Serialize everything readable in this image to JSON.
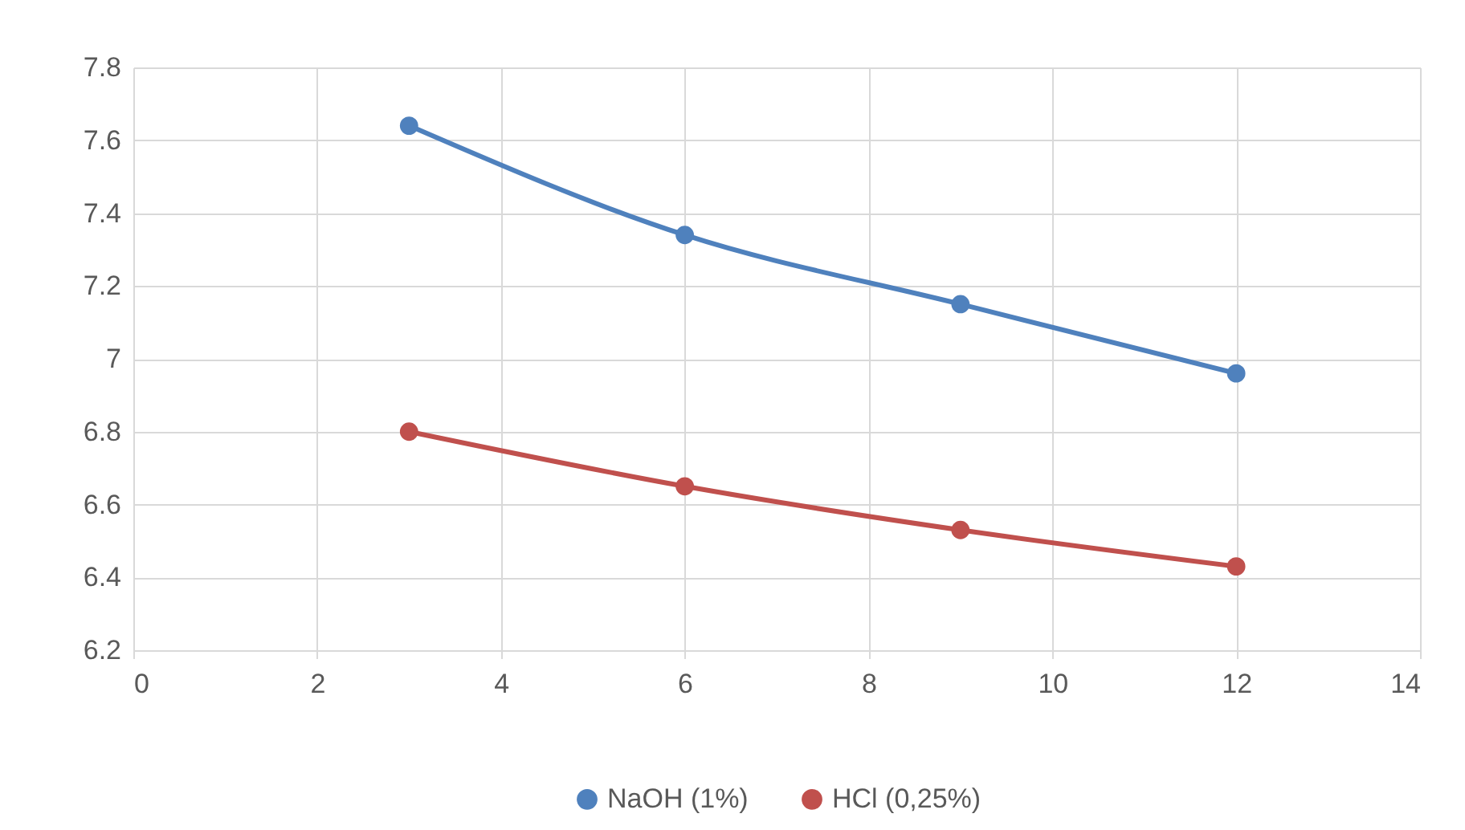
{
  "chart_data": {
    "type": "line",
    "x": [
      3,
      6,
      9,
      12
    ],
    "series": [
      {
        "name": "NaOH (1%)",
        "color": "#4f81bd",
        "values": [
          7.64,
          7.34,
          7.15,
          6.96
        ]
      },
      {
        "name": "HCl (0,25%)",
        "color": "#c0504d",
        "values": [
          6.8,
          6.65,
          6.53,
          6.43
        ]
      }
    ],
    "xlim": [
      0,
      14
    ],
    "xticks": [
      0,
      2,
      4,
      6,
      8,
      10,
      12,
      14
    ],
    "ylim": [
      6.2,
      7.8
    ],
    "yticks": [
      6.2,
      6.4,
      6.6,
      6.8,
      7,
      7.2,
      7.4,
      7.6,
      7.8
    ],
    "grid": true,
    "legend": "bottom",
    "marker": "circle",
    "line_style": "solid"
  }
}
